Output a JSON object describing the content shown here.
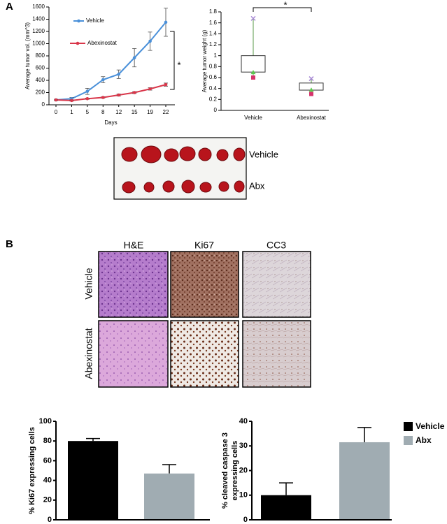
{
  "panel_labels": [
    "A",
    "B"
  ],
  "chart_data": [
    {
      "type": "line",
      "ylabel": "Average tumor vol. (mm^3)",
      "xlabel": "Days",
      "categories": [
        "0",
        "1",
        "5",
        "8",
        "12",
        "15",
        "19",
        "22"
      ],
      "ylim": [
        0,
        1600
      ],
      "yticks": [
        0,
        200,
        400,
        600,
        800,
        1000,
        1200,
        1400,
        1600
      ],
      "series": [
        {
          "name": "Vehicle",
          "color": "#4a90d9",
          "values": [
            80,
            100,
            220,
            410,
            500,
            770,
            1040,
            1350
          ],
          "errors": [
            10,
            20,
            50,
            50,
            70,
            150,
            150,
            230
          ]
        },
        {
          "name": "Abexinostat",
          "color": "#d9364a",
          "values": [
            80,
            70,
            100,
            120,
            160,
            200,
            260,
            330
          ],
          "errors": [
            10,
            10,
            10,
            10,
            15,
            15,
            20,
            25
          ]
        }
      ],
      "annotation": "*"
    },
    {
      "type": "box",
      "ylabel": "Average tumor weight (g)",
      "categories": [
        "Vehicle",
        "Abexinostat"
      ],
      "ylim": [
        0,
        1.8
      ],
      "yticks": [
        0,
        0.2,
        0.4,
        0.6,
        0.8,
        1,
        1.2,
        1.4,
        1.6,
        1.8
      ],
      "boxes": [
        {
          "min": 0.6,
          "q1": 0.7,
          "median": 0.7,
          "q3": 1,
          "max": 1.68
        },
        {
          "min": 0.3,
          "q1": 0.37,
          "median": 0.38,
          "q3": 0.5,
          "max": 0.58
        }
      ],
      "marker_colors": {
        "min": "#d6336c",
        "median": "#5cc94e",
        "max": "#a98ad6"
      },
      "annotation": "*"
    },
    {
      "type": "bar",
      "ylabel": [
        "% Ki67 expressing cells"
      ],
      "ylim": [
        0,
        100
      ],
      "yticks": [
        0,
        20,
        40,
        60,
        80,
        100
      ],
      "values": [
        80,
        47
      ],
      "errors": [
        2.5,
        9
      ],
      "colors": [
        "#000000",
        "#a0acb2"
      ]
    },
    {
      "type": "bar",
      "ylabel": [
        "% cleaved caspase 3",
        "expressing cells"
      ],
      "ylim": [
        0,
        40
      ],
      "yticks": [
        0,
        10,
        20,
        30,
        40
      ],
      "series": [
        {
          "name": "Vehicle",
          "color": "#000000",
          "values": [
            10
          ],
          "errors": [
            5
          ]
        },
        {
          "name": "Abx",
          "color": "#a0acb2",
          "values": [
            31.5
          ],
          "errors": [
            6
          ]
        }
      ]
    }
  ],
  "tumor_photo": {
    "labels": [
      "Vehicle",
      "Abx"
    ]
  },
  "histology": {
    "columns": [
      "H&E",
      "Ki67",
      "CC3"
    ],
    "rows": [
      "Vehicle",
      "Abexinostat"
    ]
  }
}
